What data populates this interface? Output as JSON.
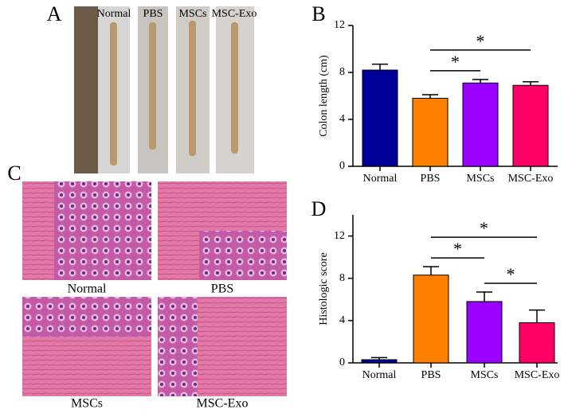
{
  "panels": {
    "A": {
      "label": "A",
      "photos": [
        "Normal",
        "PBS",
        "MSCs",
        "MSC-Exo"
      ]
    },
    "C": {
      "label": "C",
      "photos": [
        "Normal",
        "PBS",
        "MSCs",
        "MSC-Exo"
      ]
    }
  },
  "chart_data": [
    {
      "type": "bar",
      "panel_label": "B",
      "y_label": "Colon length (cm)",
      "categories": [
        "Normal",
        "PBS",
        "MSCs",
        "MSC-Exo"
      ],
      "values": [
        8.2,
        5.8,
        7.1,
        6.9
      ],
      "errors": [
        0.5,
        0.3,
        0.3,
        0.3
      ],
      "colors": [
        "#000099",
        "#ff8000",
        "#9900ff",
        "#ff0066"
      ],
      "ylim": [
        0,
        12
      ],
      "yticks": [
        0,
        4,
        8,
        12
      ],
      "significance": [
        {
          "pair": [
            1,
            2
          ],
          "label": "*"
        },
        {
          "pair": [
            1,
            3
          ],
          "label": "*"
        }
      ]
    },
    {
      "type": "bar",
      "panel_label": "D",
      "y_label": "Histologic score",
      "categories": [
        "Normal",
        "PBS",
        "MSCs",
        "MSC-Exo"
      ],
      "values": [
        0.3,
        8.3,
        5.8,
        3.8
      ],
      "errors": [
        0.2,
        0.8,
        0.9,
        1.2
      ],
      "colors": [
        "#000099",
        "#ff8000",
        "#9900ff",
        "#ff0066"
      ],
      "ylim": [
        0,
        14
      ],
      "yticks": [
        0,
        4,
        8,
        12
      ],
      "significance": [
        {
          "pair": [
            2,
            3
          ],
          "label": "*"
        },
        {
          "pair": [
            1,
            2
          ],
          "label": "*"
        },
        {
          "pair": [
            1,
            3
          ],
          "label": "*"
        }
      ]
    }
  ]
}
